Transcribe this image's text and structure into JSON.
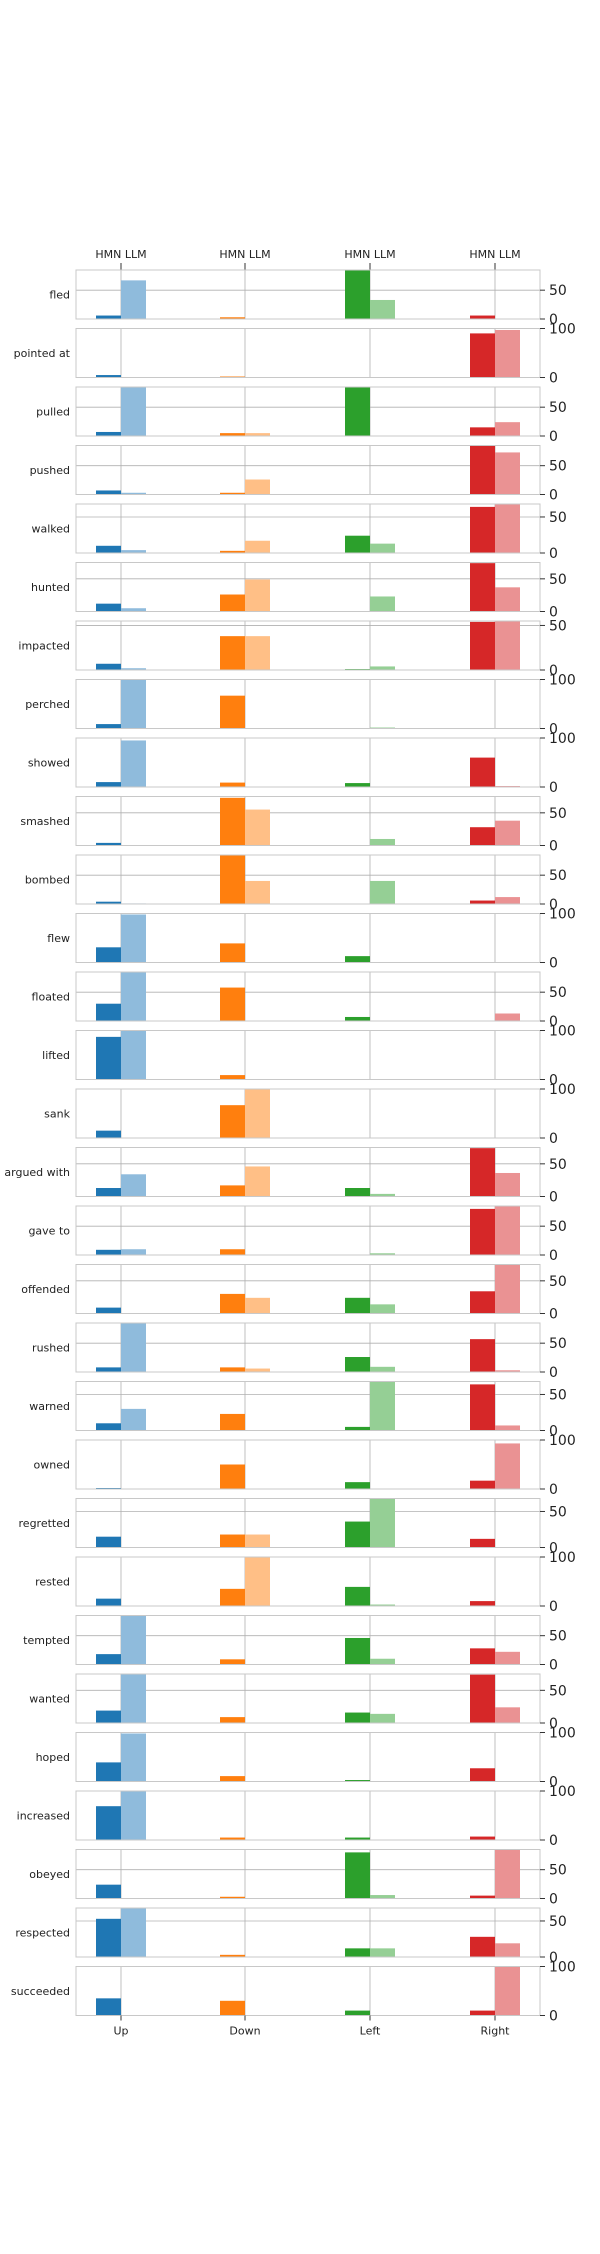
{
  "chart_data": {
    "type": "bar",
    "categories": [
      "Up",
      "Down",
      "Left",
      "Right"
    ],
    "top_labels": [
      "HMN LLM",
      "HMN LLM",
      "HMN LLM",
      "HMN LLM"
    ],
    "series": [
      {
        "name": "HMN"
      },
      {
        "name": "LLM"
      }
    ],
    "colors": {
      "Up": [
        "#1f77b4",
        "#8fbbdc"
      ],
      "Down": [
        "#ff7f0e",
        "#ffbf86"
      ],
      "Left": [
        "#2ca02c",
        "#95cf95"
      ],
      "Right": [
        "#d62728",
        "#ea9293"
      ]
    },
    "grid": "vertical gridlines at category centers",
    "rows": [
      {
        "verb": "fled",
        "ticks": [
          0,
          50
        ],
        "ylim": [
          0,
          85
        ],
        "hmn": [
          6,
          3,
          85,
          6
        ],
        "llm": [
          67,
          0,
          33,
          0
        ]
      },
      {
        "verb": "pointed at",
        "ticks": [
          0,
          100
        ],
        "ylim": [
          0,
          100
        ],
        "hmn": [
          5,
          2,
          0,
          90
        ],
        "llm": [
          1,
          0,
          0,
          97
        ]
      },
      {
        "verb": "pulled",
        "ticks": [
          0,
          50
        ],
        "ylim": [
          0,
          85
        ],
        "hmn": [
          7,
          5,
          85,
          15
        ],
        "llm": [
          85,
          5,
          0,
          24
        ]
      },
      {
        "verb": "pushed",
        "ticks": [
          0,
          50
        ],
        "ylim": [
          0,
          85
        ],
        "hmn": [
          7,
          3,
          0,
          85
        ],
        "llm": [
          3,
          26,
          0,
          73
        ]
      },
      {
        "verb": "walked",
        "ticks": [
          0,
          50
        ],
        "ylim": [
          0,
          68
        ],
        "hmn": [
          10,
          3,
          24,
          64
        ],
        "llm": [
          4,
          17,
          13,
          68
        ]
      },
      {
        "verb": "hunted",
        "ticks": [
          0,
          50
        ],
        "ylim": [
          0,
          75
        ],
        "hmn": [
          12,
          26,
          0,
          74
        ],
        "llm": [
          5,
          49,
          23,
          37
        ]
      },
      {
        "verb": "impacted",
        "ticks": [
          0,
          50
        ],
        "ylim": [
          0,
          55
        ],
        "hmn": [
          7,
          38,
          1,
          54
        ],
        "llm": [
          2,
          38,
          4,
          55
        ]
      },
      {
        "verb": "perched",
        "ticks": [
          0,
          100
        ],
        "ylim": [
          0,
          100
        ],
        "hmn": [
          9,
          67,
          0,
          0
        ],
        "llm": [
          100,
          0,
          2,
          1
        ]
      },
      {
        "verb": "showed",
        "ticks": [
          0,
          100
        ],
        "ylim": [
          0,
          100
        ],
        "hmn": [
          10,
          9,
          8,
          60
        ],
        "llm": [
          95,
          0,
          0,
          2
        ]
      },
      {
        "verb": "smashed",
        "ticks": [
          0,
          50
        ],
        "ylim": [
          0,
          75
        ],
        "hmn": [
          4,
          73,
          0,
          28
        ],
        "llm": [
          0,
          55,
          10,
          38
        ]
      },
      {
        "verb": "bombed",
        "ticks": [
          0,
          50
        ],
        "ylim": [
          0,
          85
        ],
        "hmn": [
          4,
          85,
          0,
          6
        ],
        "llm": [
          1,
          40,
          40,
          12
        ]
      },
      {
        "verb": "flew",
        "ticks": [
          0,
          100
        ],
        "ylim": [
          0,
          100
        ],
        "hmn": [
          31,
          39,
          13,
          0
        ],
        "llm": [
          98,
          0,
          0,
          0
        ]
      },
      {
        "verb": "floated",
        "ticks": [
          0,
          50
        ],
        "ylim": [
          0,
          85
        ],
        "hmn": [
          30,
          58,
          7,
          0
        ],
        "llm": [
          85,
          0,
          0,
          13
        ]
      },
      {
        "verb": "lifted",
        "ticks": [
          0,
          100
        ],
        "ylim": [
          0,
          100
        ],
        "hmn": [
          87,
          9,
          0,
          0
        ],
        "llm": [
          100,
          0,
          0,
          0
        ]
      },
      {
        "verb": "sank",
        "ticks": [
          0,
          100
        ],
        "ylim": [
          0,
          100
        ],
        "hmn": [
          15,
          67,
          0,
          0
        ],
        "llm": [
          0,
          100,
          0,
          0
        ]
      },
      {
        "verb": "argued with",
        "ticks": [
          0,
          50
        ],
        "ylim": [
          0,
          75
        ],
        "hmn": [
          13,
          17,
          13,
          74
        ],
        "llm": [
          34,
          46,
          4,
          36
        ]
      },
      {
        "verb": "gave to",
        "ticks": [
          0,
          50
        ],
        "ylim": [
          0,
          85
        ],
        "hmn": [
          9,
          10,
          0,
          80
        ],
        "llm": [
          10,
          0,
          3,
          85
        ]
      },
      {
        "verb": "offended",
        "ticks": [
          0,
          50
        ],
        "ylim": [
          0,
          75
        ],
        "hmn": [
          9,
          30,
          24,
          34
        ],
        "llm": [
          0,
          24,
          14,
          75
        ]
      },
      {
        "verb": "rushed",
        "ticks": [
          0,
          50
        ],
        "ylim": [
          0,
          85
        ],
        "hmn": [
          8,
          8,
          26,
          57
        ],
        "llm": [
          85,
          6,
          9,
          3
        ]
      },
      {
        "verb": "warned",
        "ticks": [
          0,
          50
        ],
        "ylim": [
          0,
          68
        ],
        "hmn": [
          10,
          23,
          5,
          64
        ],
        "llm": [
          30,
          0,
          68,
          7
        ]
      },
      {
        "verb": "owned",
        "ticks": [
          0,
          100
        ],
        "ylim": [
          0,
          100
        ],
        "hmn": [
          2,
          50,
          14,
          17
        ],
        "llm": [
          0,
          0,
          1,
          93
        ]
      },
      {
        "verb": "regretted",
        "ticks": [
          0,
          50
        ],
        "ylim": [
          0,
          68
        ],
        "hmn": [
          15,
          18,
          36,
          12
        ],
        "llm": [
          0,
          18,
          68,
          0
        ]
      },
      {
        "verb": "rested",
        "ticks": [
          0,
          100
        ],
        "ylim": [
          0,
          100
        ],
        "hmn": [
          15,
          35,
          39,
          10
        ],
        "llm": [
          0,
          100,
          3,
          0
        ]
      },
      {
        "verb": "tempted",
        "ticks": [
          0,
          50
        ],
        "ylim": [
          0,
          85
        ],
        "hmn": [
          18,
          9,
          46,
          28
        ],
        "llm": [
          85,
          0,
          10,
          22
        ]
      },
      {
        "verb": "wanted",
        "ticks": [
          0,
          50
        ],
        "ylim": [
          0,
          75
        ],
        "hmn": [
          19,
          9,
          16,
          74
        ],
        "llm": [
          75,
          0,
          14,
          24
        ]
      },
      {
        "verb": "hoped",
        "ticks": [
          0,
          100
        ],
        "ylim": [
          0,
          100
        ],
        "hmn": [
          39,
          11,
          3,
          27
        ],
        "llm": [
          98,
          0,
          0,
          0
        ]
      },
      {
        "verb": "increased",
        "ticks": [
          0,
          100
        ],
        "ylim": [
          0,
          100
        ],
        "hmn": [
          69,
          5,
          5,
          7
        ],
        "llm": [
          100,
          0,
          0,
          0
        ]
      },
      {
        "verb": "obeyed",
        "ticks": [
          0,
          50
        ],
        "ylim": [
          0,
          85
        ],
        "hmn": [
          24,
          3,
          80,
          5
        ],
        "llm": [
          0,
          0,
          6,
          85
        ]
      },
      {
        "verb": "respected",
        "ticks": [
          0,
          50
        ],
        "ylim": [
          0,
          68
        ],
        "hmn": [
          53,
          3,
          12,
          28
        ],
        "llm": [
          68,
          0,
          12,
          19
        ]
      },
      {
        "verb": "succeeded",
        "ticks": [
          0,
          100
        ],
        "ylim": [
          0,
          100
        ],
        "hmn": [
          35,
          30,
          10,
          10
        ],
        "llm": [
          0,
          0,
          0,
          100
        ]
      }
    ]
  }
}
